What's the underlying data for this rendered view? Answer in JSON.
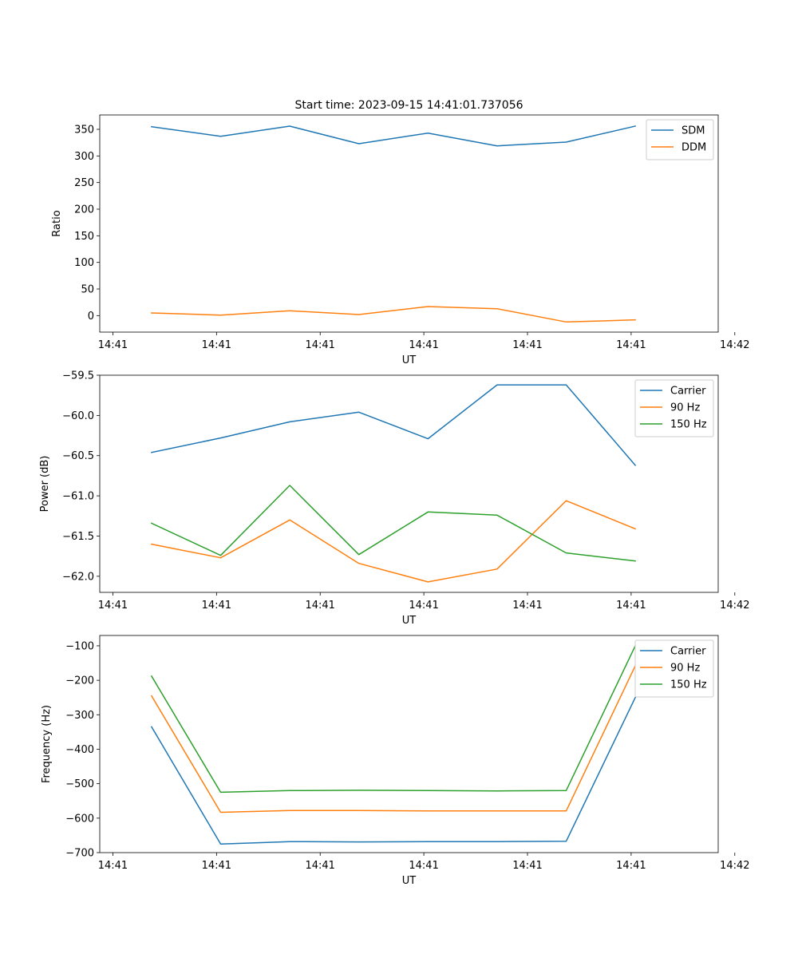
{
  "colors": {
    "c0": "#1f77b4",
    "c1": "#ff7f0e",
    "c2": "#2ca02c"
  },
  "chart_data": [
    {
      "type": "line",
      "title": "Start time: 2023-09-15 14:41:01.737056",
      "xlabel": "UT",
      "ylabel": "Ratio",
      "x": [
        1,
        2,
        3,
        4,
        5,
        6,
        7,
        8
      ],
      "xlim": [
        0.25,
        9.2
      ],
      "x_ticks": [
        0.44,
        1.94,
        3.44,
        4.94,
        6.44,
        7.94,
        9.44
      ],
      "x_ticklabels": [
        "14:41",
        "14:41",
        "14:41",
        "14:41",
        "14:41",
        "14:41",
        "14:42"
      ],
      "ylim": [
        -31,
        377
      ],
      "y_ticks": [
        0,
        50,
        100,
        150,
        200,
        250,
        300,
        350
      ],
      "y_ticklabels": [
        "0",
        "50",
        "100",
        "150",
        "200",
        "250",
        "300",
        "350"
      ],
      "legend_position": "top-right",
      "series": [
        {
          "name": "SDM",
          "color": "#1f77b4",
          "values": [
            355,
            337,
            356,
            323,
            343,
            319,
            326,
            356
          ]
        },
        {
          "name": "DDM",
          "color": "#ff7f0e",
          "values": [
            5,
            1,
            9,
            2,
            17,
            13,
            -12,
            -8
          ]
        }
      ]
    },
    {
      "type": "line",
      "xlabel": "UT",
      "ylabel": "Power (dB)",
      "x": [
        1,
        2,
        3,
        4,
        5,
        6,
        7,
        8
      ],
      "xlim": [
        0.25,
        9.2
      ],
      "x_ticks": [
        0.44,
        1.94,
        3.44,
        4.94,
        6.44,
        7.94,
        9.44
      ],
      "x_ticklabels": [
        "14:41",
        "14:41",
        "14:41",
        "14:41",
        "14:41",
        "14:41",
        "14:42"
      ],
      "ylim": [
        -62.2,
        -59.5
      ],
      "y_ticks": [
        -62.0,
        -61.5,
        -61.0,
        -60.5,
        -60.0,
        -59.5
      ],
      "y_ticklabels": [
        "−62.0",
        "−61.5",
        "−61.0",
        "−60.5",
        "−60.0",
        "−59.5"
      ],
      "legend_position": "top-right",
      "series": [
        {
          "name": "Carrier",
          "color": "#1f77b4",
          "values": [
            -60.46,
            -60.28,
            -60.08,
            -59.96,
            -60.29,
            -59.62,
            -59.62,
            -60.62
          ]
        },
        {
          "name": "90 Hz",
          "color": "#ff7f0e",
          "values": [
            -61.6,
            -61.77,
            -61.3,
            -61.84,
            -62.07,
            -61.91,
            -61.06,
            -61.41
          ]
        },
        {
          "name": "150 Hz",
          "color": "#2ca02c",
          "values": [
            -61.34,
            -61.74,
            -60.87,
            -61.73,
            -61.2,
            -61.24,
            -61.71,
            -61.81
          ]
        }
      ]
    },
    {
      "type": "line",
      "xlabel": "UT",
      "ylabel": "Frequency (Hz)",
      "x": [
        1,
        2,
        3,
        4,
        5,
        6,
        7,
        8
      ],
      "xlim": [
        0.25,
        9.2
      ],
      "x_ticks": [
        0.44,
        1.94,
        3.44,
        4.94,
        6.44,
        7.94,
        9.44
      ],
      "x_ticklabels": [
        "14:41",
        "14:41",
        "14:41",
        "14:41",
        "14:41",
        "14:41",
        "14:42"
      ],
      "ylim": [
        -700,
        -70
      ],
      "y_ticks": [
        -700,
        -600,
        -500,
        -400,
        -300,
        -200,
        -100
      ],
      "y_ticklabels": [
        "−700",
        "−600",
        "−500",
        "−400",
        "−300",
        "−200",
        "−100"
      ],
      "legend_position": "top-right",
      "series": [
        {
          "name": "Carrier",
          "color": "#1f77b4",
          "values": [
            -335,
            -675,
            -668,
            -669,
            -668,
            -668,
            -667,
            -250
          ]
        },
        {
          "name": "90 Hz",
          "color": "#ff7f0e",
          "values": [
            -245,
            -583,
            -578,
            -578,
            -579,
            -579,
            -579,
            -158
          ]
        },
        {
          "name": "150 Hz",
          "color": "#2ca02c",
          "values": [
            -188,
            -525,
            -520,
            -519,
            -520,
            -521,
            -520,
            -100
          ]
        }
      ]
    }
  ]
}
